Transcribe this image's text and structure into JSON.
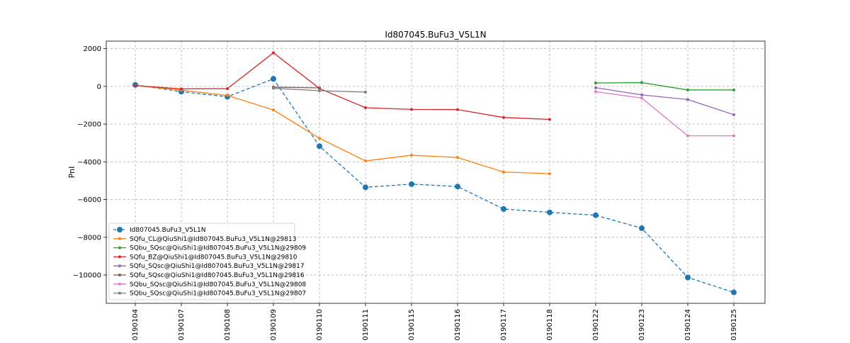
{
  "chart_data": {
    "type": "line",
    "title": "Id807045.BuFu3_V5L1N",
    "xlabel": "",
    "ylabel": "PnI",
    "categories": [
      "20190104",
      "20190107",
      "20190108",
      "20190109",
      "20190110",
      "20190111",
      "20190115",
      "20190116",
      "20190117",
      "20190118",
      "20190122",
      "20190123",
      "20190124",
      "20190125"
    ],
    "ylim": [
      -11500,
      2400
    ],
    "yticks": [
      2000,
      0,
      -2000,
      -4000,
      -6000,
      -8000,
      -10000
    ],
    "ytick_labels": [
      "2000",
      "0",
      "−2000",
      "−4000",
      "−6000",
      "−8000",
      "−10000"
    ],
    "grid": true,
    "legend_position": "lower-left",
    "series": [
      {
        "name": "Id807045.BuFu3_V5L1N",
        "color": "#1f77b4",
        "dashed": true,
        "marker_size": 4,
        "values": [
          80,
          -280,
          -550,
          400,
          -3170,
          -5350,
          -5180,
          -5310,
          -6500,
          -6680,
          -6830,
          -7520,
          -10130,
          -10920
        ]
      },
      {
        "name": "SQfu_CL@QiuShi1@Id807045.BuFu3_V5L1N@29813",
        "color": "#ff7f0e",
        "dashed": false,
        "marker_size": 2,
        "values": [
          50,
          -200,
          -480,
          -1250,
          -2750,
          -3950,
          -3650,
          -3770,
          -4540,
          -4630,
          null,
          null,
          null,
          null
        ]
      },
      {
        "name": "SQbu_SQsc@QiuShi1@Id807045.BuFu3_V5L1N@29809",
        "color": "#2ca02c",
        "dashed": false,
        "marker_size": 2,
        "values": [
          null,
          null,
          null,
          null,
          null,
          null,
          null,
          null,
          null,
          null,
          180,
          200,
          -190,
          -190
        ]
      },
      {
        "name": "SQfu_BZ@QiuShi1@Id807045.BuFu3_V5L1N@29810",
        "color": "#d62728",
        "dashed": false,
        "marker_size": 2,
        "values": [
          40,
          -130,
          -120,
          1780,
          -110,
          -1130,
          -1220,
          -1230,
          -1650,
          -1750,
          null,
          null,
          null,
          null
        ]
      },
      {
        "name": "SQfu_SQsc@QiuShi1@Id807045.BuFu3_V5L1N@29817",
        "color": "#9467bd",
        "dashed": false,
        "marker_size": 2,
        "values": [
          null,
          null,
          null,
          null,
          null,
          null,
          null,
          null,
          null,
          null,
          -70,
          -450,
          -700,
          -1500
        ]
      },
      {
        "name": "SQfu_SQsc@QiuShi1@Id807045.BuFu3_V5L1N@29816",
        "color": "#8c564b",
        "dashed": false,
        "marker_size": 2,
        "values": [
          null,
          null,
          null,
          -40,
          -80,
          null,
          null,
          null,
          null,
          null,
          null,
          null,
          null,
          null
        ]
      },
      {
        "name": "SQbu_SQsc@QiuShi1@Id807045.BuFu3_V5L1N@29808",
        "color": "#e377c2",
        "dashed": false,
        "marker_size": 2,
        "values": [
          null,
          null,
          null,
          null,
          null,
          null,
          null,
          null,
          null,
          null,
          -280,
          -620,
          -2620,
          -2620
        ]
      },
      {
        "name": "SQbu_SQsc@QiuShi1@Id807045.BuFu3_V5L1N@29807",
        "color": "#7f7f7f",
        "dashed": false,
        "marker_size": 2,
        "values": [
          null,
          null,
          null,
          -100,
          -230,
          -300,
          null,
          null,
          null,
          null,
          null,
          null,
          null,
          null
        ]
      }
    ]
  }
}
